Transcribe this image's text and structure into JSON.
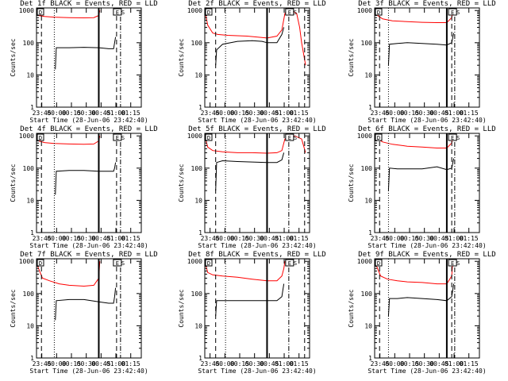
{
  "chart_data": [
    {
      "type": "line",
      "title": "Det 1f BLACK = Events, RED = LLD",
      "xlabel": "Start Time (28-Jun-06 23:42:40)",
      "ylabel": "Counts/sec",
      "xtick_labels": [
        "23:45",
        "00:00",
        "00:15",
        "00:30",
        "00:45",
        "01:00",
        "01:15"
      ],
      "ytick_labels": [
        "1",
        "10",
        "100",
        "1000"
      ],
      "xlim_minutes": [
        -3,
        103
      ],
      "ylim": [
        1,
        1200
      ],
      "yscale": "log",
      "corner_labels": [
        "D",
        "E",
        "S"
      ],
      "series": [
        {
          "color": "#ff0000",
          "x": [
            -3,
            -1,
            5,
            15,
            30,
            45,
            55,
            60,
            61
          ],
          "y": [
            900,
            700,
            650,
            620,
            600,
            590,
            600,
            700,
            1000
          ]
        },
        {
          "color": "#000000",
          "x": [
            16,
            17,
            30,
            45,
            60,
            70,
            75,
            76,
            77
          ],
          "y": [
            15,
            70,
            70,
            72,
            70,
            65,
            65,
            100,
            150
          ]
        }
      ],
      "vlines": [
        {
          "style": "dashed",
          "x": 2
        },
        {
          "style": "dotted",
          "x": 15
        },
        {
          "style": "solid",
          "x": 60
        },
        {
          "style": "dashed",
          "x": 78
        },
        {
          "style": "dashdot",
          "x": 82
        }
      ]
    },
    {
      "type": "line",
      "title": "Det 2f BLACK = Events, RED = LLD",
      "xlabel": "Start Time (28-Jun-06 23:42:40)",
      "ylabel": "Counts/sec",
      "xtick_labels": [
        "23:45",
        "00:00",
        "00:15",
        "00:30",
        "00:45",
        "01:00",
        "01:15"
      ],
      "ytick_labels": [
        "1",
        "10",
        "100",
        "1000"
      ],
      "xlim_minutes": [
        -3,
        103
      ],
      "ylim": [
        1,
        1200
      ],
      "yscale": "log",
      "corner_labels": [
        "D",
        "E",
        "S"
      ],
      "series": [
        {
          "color": "#ff0000",
          "x": [
            -3,
            0,
            5,
            10,
            20,
            40,
            60,
            70,
            75,
            78,
            82,
            85,
            90,
            93,
            95,
            99
          ],
          "y": [
            1000,
            350,
            200,
            180,
            170,
            160,
            140,
            160,
            250,
            800,
            1200,
            1000,
            800,
            300,
            100,
            20
          ]
        },
        {
          "color": "#000000",
          "x": [
            8,
            9,
            15,
            30,
            45,
            55,
            60,
            70,
            75,
            77
          ],
          "y": [
            20,
            60,
            90,
            110,
            115,
            110,
            100,
            100,
            180,
            300
          ]
        }
      ],
      "vlines": [
        {
          "style": "dashed",
          "x": 8
        },
        {
          "style": "dotted",
          "x": 18
        },
        {
          "style": "solid",
          "x": 60
        },
        {
          "style": "dashdot",
          "x": 82
        },
        {
          "style": "dashed",
          "x": 98
        }
      ]
    },
    {
      "type": "line",
      "title": "Det 3f BLACK = Events, RED = LLD",
      "xlabel": "Start Time (28-Jun-06 23:42:40)",
      "ylabel": "Counts/sec",
      "xtick_labels": [
        "23:45",
        "00:00",
        "00:15",
        "00:30",
        "00:45",
        "01:00",
        "01:15"
      ],
      "ytick_labels": [
        "1",
        "10",
        "100",
        "1000"
      ],
      "xlim_minutes": [
        -3,
        103
      ],
      "ylim": [
        1,
        1200
      ],
      "yscale": "log",
      "corner_labels": [
        "D",
        "E",
        "S"
      ],
      "series": [
        {
          "color": "#ff0000",
          "x": [
            -3,
            0,
            5,
            15,
            30,
            45,
            60,
            70,
            75,
            76
          ],
          "y": [
            1100,
            700,
            550,
            480,
            450,
            430,
            420,
            420,
            600,
            1000
          ]
        },
        {
          "color": "#000000",
          "x": [
            11,
            12,
            20,
            30,
            45,
            60,
            70,
            75,
            77
          ],
          "y": [
            20,
            90,
            95,
            100,
            95,
            90,
            85,
            100,
            200
          ]
        }
      ],
      "vlines": [
        {
          "style": "dashed",
          "x": 2
        },
        {
          "style": "dotted",
          "x": 11
        },
        {
          "style": "solid",
          "x": 70
        },
        {
          "style": "dashed",
          "x": 75
        },
        {
          "style": "dashdot",
          "x": 78
        }
      ]
    },
    {
      "type": "line",
      "title": "Det 4f BLACK = Events, RED = LLD",
      "xlabel": "Start Time (28-Jun-06 23:42:40)",
      "ylabel": "Counts/sec",
      "xtick_labels": [
        "23:45",
        "00:00",
        "00:15",
        "00:30",
        "00:45",
        "01:00",
        "01:15"
      ],
      "ytick_labels": [
        "1",
        "10",
        "100",
        "1000"
      ],
      "xlim_minutes": [
        -3,
        103
      ],
      "ylim": [
        1,
        1200
      ],
      "yscale": "log",
      "corner_labels": [
        "D",
        "E",
        "S"
      ],
      "series": [
        {
          "color": "#ff0000",
          "x": [
            -3,
            -1,
            5,
            15,
            30,
            45,
            55,
            60,
            61
          ],
          "y": [
            900,
            700,
            620,
            580,
            560,
            550,
            560,
            700,
            1000
          ]
        },
        {
          "color": "#000000",
          "x": [
            16,
            17,
            30,
            45,
            60,
            70,
            75,
            76,
            77
          ],
          "y": [
            15,
            80,
            85,
            85,
            80,
            80,
            80,
            100,
            150
          ]
        }
      ],
      "vlines": [
        {
          "style": "dashed",
          "x": 2
        },
        {
          "style": "dotted",
          "x": 15
        },
        {
          "style": "solid",
          "x": 60
        },
        {
          "style": "dashed",
          "x": 78
        },
        {
          "style": "dashdot",
          "x": 82
        }
      ]
    },
    {
      "type": "line",
      "title": "Det 5f BLACK = Events, RED = LLD",
      "xlabel": "Start Time (28-Jun-06 23:42:40)",
      "ylabel": "Counts/sec",
      "xtick_labels": [
        "23:45",
        "00:00",
        "00:15",
        "00:30",
        "00:45",
        "01:00",
        "01:15"
      ],
      "ytick_labels": [
        "1",
        "10",
        "100",
        "1000"
      ],
      "xlim_minutes": [
        -3,
        103
      ],
      "ylim": [
        1,
        1200
      ],
      "yscale": "log",
      "corner_labels": [
        "D",
        "E",
        "S"
      ],
      "series": [
        {
          "color": "#ff0000",
          "x": [
            -3,
            0,
            5,
            15,
            30,
            45,
            60,
            70,
            75,
            78,
            82,
            88,
            95,
            99
          ],
          "y": [
            1000,
            450,
            350,
            320,
            300,
            300,
            290,
            300,
            350,
            800,
            1000,
            1000,
            800,
            300
          ]
        },
        {
          "color": "#000000",
          "x": [
            8,
            9,
            15,
            30,
            45,
            60,
            70,
            75,
            77
          ],
          "y": [
            20,
            150,
            170,
            160,
            155,
            150,
            150,
            180,
            300
          ]
        }
      ],
      "vlines": [
        {
          "style": "dashed",
          "x": 8
        },
        {
          "style": "dotted",
          "x": 18
        },
        {
          "style": "solid",
          "x": 60
        },
        {
          "style": "dashdot",
          "x": 82
        },
        {
          "style": "dashed",
          "x": 98
        }
      ]
    },
    {
      "type": "line",
      "title": "Det 6f BLACK = Events, RED = LLD",
      "xlabel": "Start Time (28-Jun-06 23:42:40)",
      "ylabel": "Counts/sec",
      "xtick_labels": [
        "23:45",
        "00:00",
        "00:15",
        "00:30",
        "00:45",
        "01:00",
        "01:15"
      ],
      "ytick_labels": [
        "1",
        "10",
        "100",
        "1000"
      ],
      "xlim_minutes": [
        -3,
        103
      ],
      "ylim": [
        1,
        1200
      ],
      "yscale": "log",
      "corner_labels": [
        "D",
        "E",
        "S"
      ],
      "series": [
        {
          "color": "#ff0000",
          "x": [
            -3,
            0,
            5,
            15,
            30,
            45,
            60,
            70,
            75,
            76
          ],
          "y": [
            1100,
            800,
            650,
            550,
            480,
            450,
            420,
            420,
            600,
            1000
          ]
        },
        {
          "color": "#000000",
          "x": [
            11,
            12,
            20,
            30,
            45,
            60,
            70,
            75,
            77
          ],
          "y": [
            20,
            100,
            95,
            95,
            95,
            110,
            90,
            100,
            200
          ]
        }
      ],
      "vlines": [
        {
          "style": "dashed",
          "x": 2
        },
        {
          "style": "dotted",
          "x": 11
        },
        {
          "style": "solid",
          "x": 70
        },
        {
          "style": "dashed",
          "x": 75
        },
        {
          "style": "dashdot",
          "x": 78
        }
      ]
    },
    {
      "type": "line",
      "title": "Det 7f BLACK = Events, RED = LLD",
      "xlabel": "Start Time (28-Jun-06 23:42:40)",
      "ylabel": "Counts/sec",
      "xtick_labels": [
        "23:45",
        "00:00",
        "00:15",
        "00:30",
        "00:45",
        "01:00",
        "01:15"
      ],
      "ytick_labels": [
        "1",
        "10",
        "100",
        "1000"
      ],
      "xlim_minutes": [
        -3,
        103
      ],
      "ylim": [
        1,
        1200
      ],
      "yscale": "log",
      "corner_labels": [
        "D",
        "E",
        "S"
      ],
      "series": [
        {
          "color": "#ff0000",
          "x": [
            -3,
            -1,
            3,
            10,
            20,
            30,
            45,
            55,
            60,
            61
          ],
          "y": [
            1000,
            600,
            300,
            250,
            200,
            180,
            170,
            180,
            300,
            1000
          ]
        },
        {
          "color": "#000000",
          "x": [
            16,
            17,
            30,
            45,
            60,
            70,
            75,
            76,
            77
          ],
          "y": [
            15,
            60,
            65,
            65,
            55,
            50,
            50,
            80,
            150
          ]
        }
      ],
      "vlines": [
        {
          "style": "dashed",
          "x": 2
        },
        {
          "style": "dotted",
          "x": 15
        },
        {
          "style": "solid",
          "x": 60
        },
        {
          "style": "dashed",
          "x": 78
        },
        {
          "style": "dashdot",
          "x": 82
        }
      ]
    },
    {
      "type": "line",
      "title": "Det 8f BLACK = Events, RED = LLD",
      "xlabel": "Start Time (28-Jun-06 23:42:40)",
      "ylabel": "Counts/sec",
      "xtick_labels": [
        "23:45",
        "00:00",
        "00:15",
        "00:30",
        "00:45",
        "01:00",
        "01:15"
      ],
      "ytick_labels": [
        "1",
        "10",
        "100",
        "1000"
      ],
      "xlim_minutes": [
        -3,
        103
      ],
      "ylim": [
        1,
        1200
      ],
      "yscale": "log",
      "corner_labels": [
        "D",
        "E",
        "S"
      ],
      "series": [
        {
          "color": "#ff0000",
          "x": [
            -3,
            0,
            5,
            15,
            30,
            45,
            60,
            70,
            75,
            77,
            78
          ],
          "y": [
            1000,
            450,
            380,
            350,
            320,
            280,
            250,
            250,
            350,
            600,
            1000
          ]
        },
        {
          "color": "#000000",
          "x": [
            8,
            9,
            15,
            30,
            45,
            60,
            70,
            75,
            77
          ],
          "y": [
            20,
            60,
            60,
            60,
            60,
            60,
            60,
            80,
            200
          ]
        }
      ],
      "vlines": [
        {
          "style": "dashed",
          "x": 8
        },
        {
          "style": "dotted",
          "x": 18
        },
        {
          "style": "solid",
          "x": 60
        },
        {
          "style": "dashdot",
          "x": 82
        },
        {
          "style": "dashed",
          "x": 98
        }
      ]
    },
    {
      "type": "line",
      "title": "Det 9f BLACK = Events, RED = LLD",
      "xlabel": "Start Time (28-Jun-06 23:42:40)",
      "ylabel": "Counts/sec",
      "xtick_labels": [
        "23:45",
        "00:00",
        "00:15",
        "00:30",
        "00:45",
        "01:00",
        "01:15"
      ],
      "ytick_labels": [
        "1",
        "10",
        "100",
        "1000"
      ],
      "xlim_minutes": [
        -3,
        103
      ],
      "ylim": [
        1,
        1200
      ],
      "yscale": "log",
      "corner_labels": [
        "D",
        "E",
        "S"
      ],
      "series": [
        {
          "color": "#ff0000",
          "x": [
            -3,
            -1,
            3,
            10,
            20,
            30,
            45,
            60,
            70,
            75,
            76
          ],
          "y": [
            1100,
            700,
            350,
            280,
            250,
            230,
            220,
            200,
            200,
            350,
            1000
          ]
        },
        {
          "color": "#000000",
          "x": [
            11,
            12,
            20,
            30,
            45,
            60,
            70,
            75,
            77
          ],
          "y": [
            20,
            70,
            70,
            75,
            70,
            65,
            60,
            80,
            200
          ]
        }
      ],
      "vlines": [
        {
          "style": "dashed",
          "x": 2
        },
        {
          "style": "dotted",
          "x": 11
        },
        {
          "style": "solid",
          "x": 70
        },
        {
          "style": "dashed",
          "x": 75
        },
        {
          "style": "dashdot",
          "x": 78
        }
      ]
    }
  ]
}
